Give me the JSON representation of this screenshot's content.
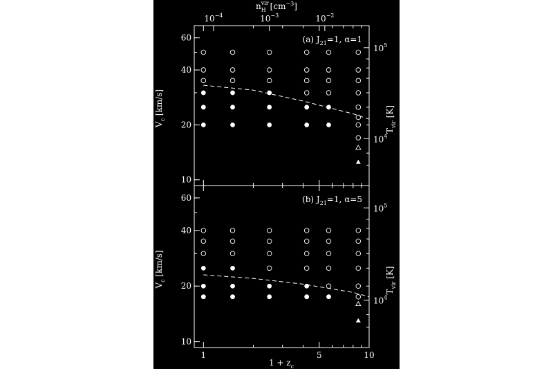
{
  "figure": {
    "background": "#000000",
    "foreground": "#ffffff",
    "top_axis": {
      "label": "n_H^vir [cm^-3]",
      "label_main": "n",
      "label_sub": "H",
      "label_sup": "vir",
      "label_rest": "[cm",
      "label_rest_sup": "−3",
      "label_close": "]",
      "ticks": [
        {
          "value": 0.0001,
          "label": "10",
          "exp": "−4"
        },
        {
          "value": 0.001,
          "label": "10",
          "exp": "−3"
        },
        {
          "value": 0.01,
          "label": "10",
          "exp": "−2"
        }
      ]
    },
    "bottom_axis": {
      "label": "1 + z",
      "label_sub": "c",
      "ticks": [
        {
          "value": 1,
          "label": "1"
        },
        {
          "value": 5,
          "label": "5"
        },
        {
          "value": 10,
          "label": "10"
        }
      ]
    }
  },
  "chart_data": [
    {
      "type": "scatter",
      "panel_label": "(a) J",
      "panel_label_sub": "21",
      "panel_label_rest": "=1,  α=1",
      "ylabel": "V",
      "ylabel_sub": "c",
      "ylabel_rest": " [km/s]",
      "y2label": "T",
      "y2label_sub": "vir",
      "y2label_rest": " [K]",
      "x_scale": "log",
      "y_scale": "log",
      "xlim": [
        0.88,
        10
      ],
      "ylim": [
        9.3,
        70
      ],
      "y_ticks": [
        10,
        20,
        40,
        60
      ],
      "y2_ticks": [
        {
          "label": "10",
          "exp": "4"
        },
        {
          "label": "10",
          "exp": "5"
        }
      ],
      "series": [
        {
          "marker": "open-circle",
          "points": [
            [
              1,
              50
            ],
            [
              1.5,
              50
            ],
            [
              2.5,
              50
            ],
            [
              4.2,
              50
            ],
            [
              5.7,
              50
            ],
            [
              8.6,
              50
            ],
            [
              1,
              40
            ],
            [
              1.5,
              40
            ],
            [
              2.5,
              40
            ],
            [
              4.2,
              40
            ],
            [
              5.7,
              40
            ],
            [
              8.6,
              40
            ],
            [
              1,
              35
            ],
            [
              1.5,
              35
            ],
            [
              2.5,
              35
            ],
            [
              4.2,
              35
            ],
            [
              5.7,
              35
            ],
            [
              8.6,
              35
            ],
            [
              4.2,
              30
            ],
            [
              5.7,
              30
            ],
            [
              8.6,
              30
            ],
            [
              8.6,
              25
            ],
            [
              8.6,
              22
            ],
            [
              8.6,
              20
            ],
            [
              8.6,
              17
            ]
          ]
        },
        {
          "marker": "filled-circle",
          "points": [
            [
              1,
              30
            ],
            [
              1.5,
              30
            ],
            [
              2.5,
              30
            ],
            [
              1,
              25
            ],
            [
              1.5,
              25
            ],
            [
              2.5,
              25
            ],
            [
              4.2,
              25
            ],
            [
              5.7,
              25
            ],
            [
              1,
              20
            ],
            [
              1.5,
              20
            ],
            [
              2.5,
              20
            ],
            [
              4.2,
              20
            ],
            [
              5.7,
              20
            ]
          ]
        },
        {
          "marker": "open-triangle",
          "points": [
            [
              8.6,
              15
            ]
          ]
        },
        {
          "marker": "filled-triangle",
          "points": [
            [
              8.6,
              12.5
            ]
          ]
        },
        {
          "marker": "dashed-line",
          "points": [
            [
              1,
              33
            ],
            [
              2,
              31
            ],
            [
              4,
              27
            ],
            [
              8,
              23
            ],
            [
              10,
              21.5
            ]
          ]
        }
      ]
    },
    {
      "type": "scatter",
      "panel_label": "(b) J",
      "panel_label_sub": "21",
      "panel_label_rest": "=1,  α=5",
      "ylabel": "V",
      "ylabel_sub": "c",
      "ylabel_rest": " [km/s]",
      "y2label": "T",
      "y2label_sub": "vir",
      "y2label_rest": " [K]",
      "x_scale": "log",
      "y_scale": "log",
      "xlim": [
        0.88,
        10
      ],
      "ylim": [
        9.3,
        70
      ],
      "y_ticks": [
        10,
        20,
        40,
        60
      ],
      "y2_ticks": [
        {
          "label": "10",
          "exp": "4"
        },
        {
          "label": "10",
          "exp": "5"
        }
      ],
      "series": [
        {
          "marker": "open-circle",
          "points": [
            [
              1,
              40
            ],
            [
              1.5,
              40
            ],
            [
              2.5,
              40
            ],
            [
              4.2,
              40
            ],
            [
              5.7,
              40
            ],
            [
              8.6,
              40
            ],
            [
              1,
              35
            ],
            [
              1.5,
              35
            ],
            [
              2.5,
              35
            ],
            [
              4.2,
              35
            ],
            [
              5.7,
              35
            ],
            [
              8.6,
              35
            ],
            [
              1,
              30
            ],
            [
              1.5,
              30
            ],
            [
              2.5,
              30
            ],
            [
              4.2,
              30
            ],
            [
              5.7,
              30
            ],
            [
              8.6,
              30
            ],
            [
              2.5,
              25
            ],
            [
              4.2,
              25
            ],
            [
              5.7,
              25
            ],
            [
              8.6,
              25
            ],
            [
              5.7,
              20
            ],
            [
              8.6,
              20
            ],
            [
              8.6,
              17.5
            ]
          ]
        },
        {
          "marker": "filled-circle",
          "points": [
            [
              1,
              25
            ],
            [
              1.5,
              25
            ],
            [
              1,
              20
            ],
            [
              1.5,
              20
            ],
            [
              2.5,
              20
            ],
            [
              4.2,
              20
            ],
            [
              1,
              17.5
            ],
            [
              1.5,
              17.5
            ],
            [
              2.5,
              17.5
            ],
            [
              4.2,
              17.5
            ],
            [
              5.7,
              17.5
            ]
          ]
        },
        {
          "marker": "open-triangle",
          "points": [
            [
              8.6,
              16
            ]
          ]
        },
        {
          "marker": "filled-triangle",
          "points": [
            [
              8.6,
              13
            ]
          ]
        },
        {
          "marker": "dashed-line",
          "points": [
            [
              1,
              23
            ],
            [
              2,
              22
            ],
            [
              4,
              20.5
            ],
            [
              8,
              18.5
            ],
            [
              10,
              17.5
            ]
          ]
        }
      ]
    }
  ]
}
